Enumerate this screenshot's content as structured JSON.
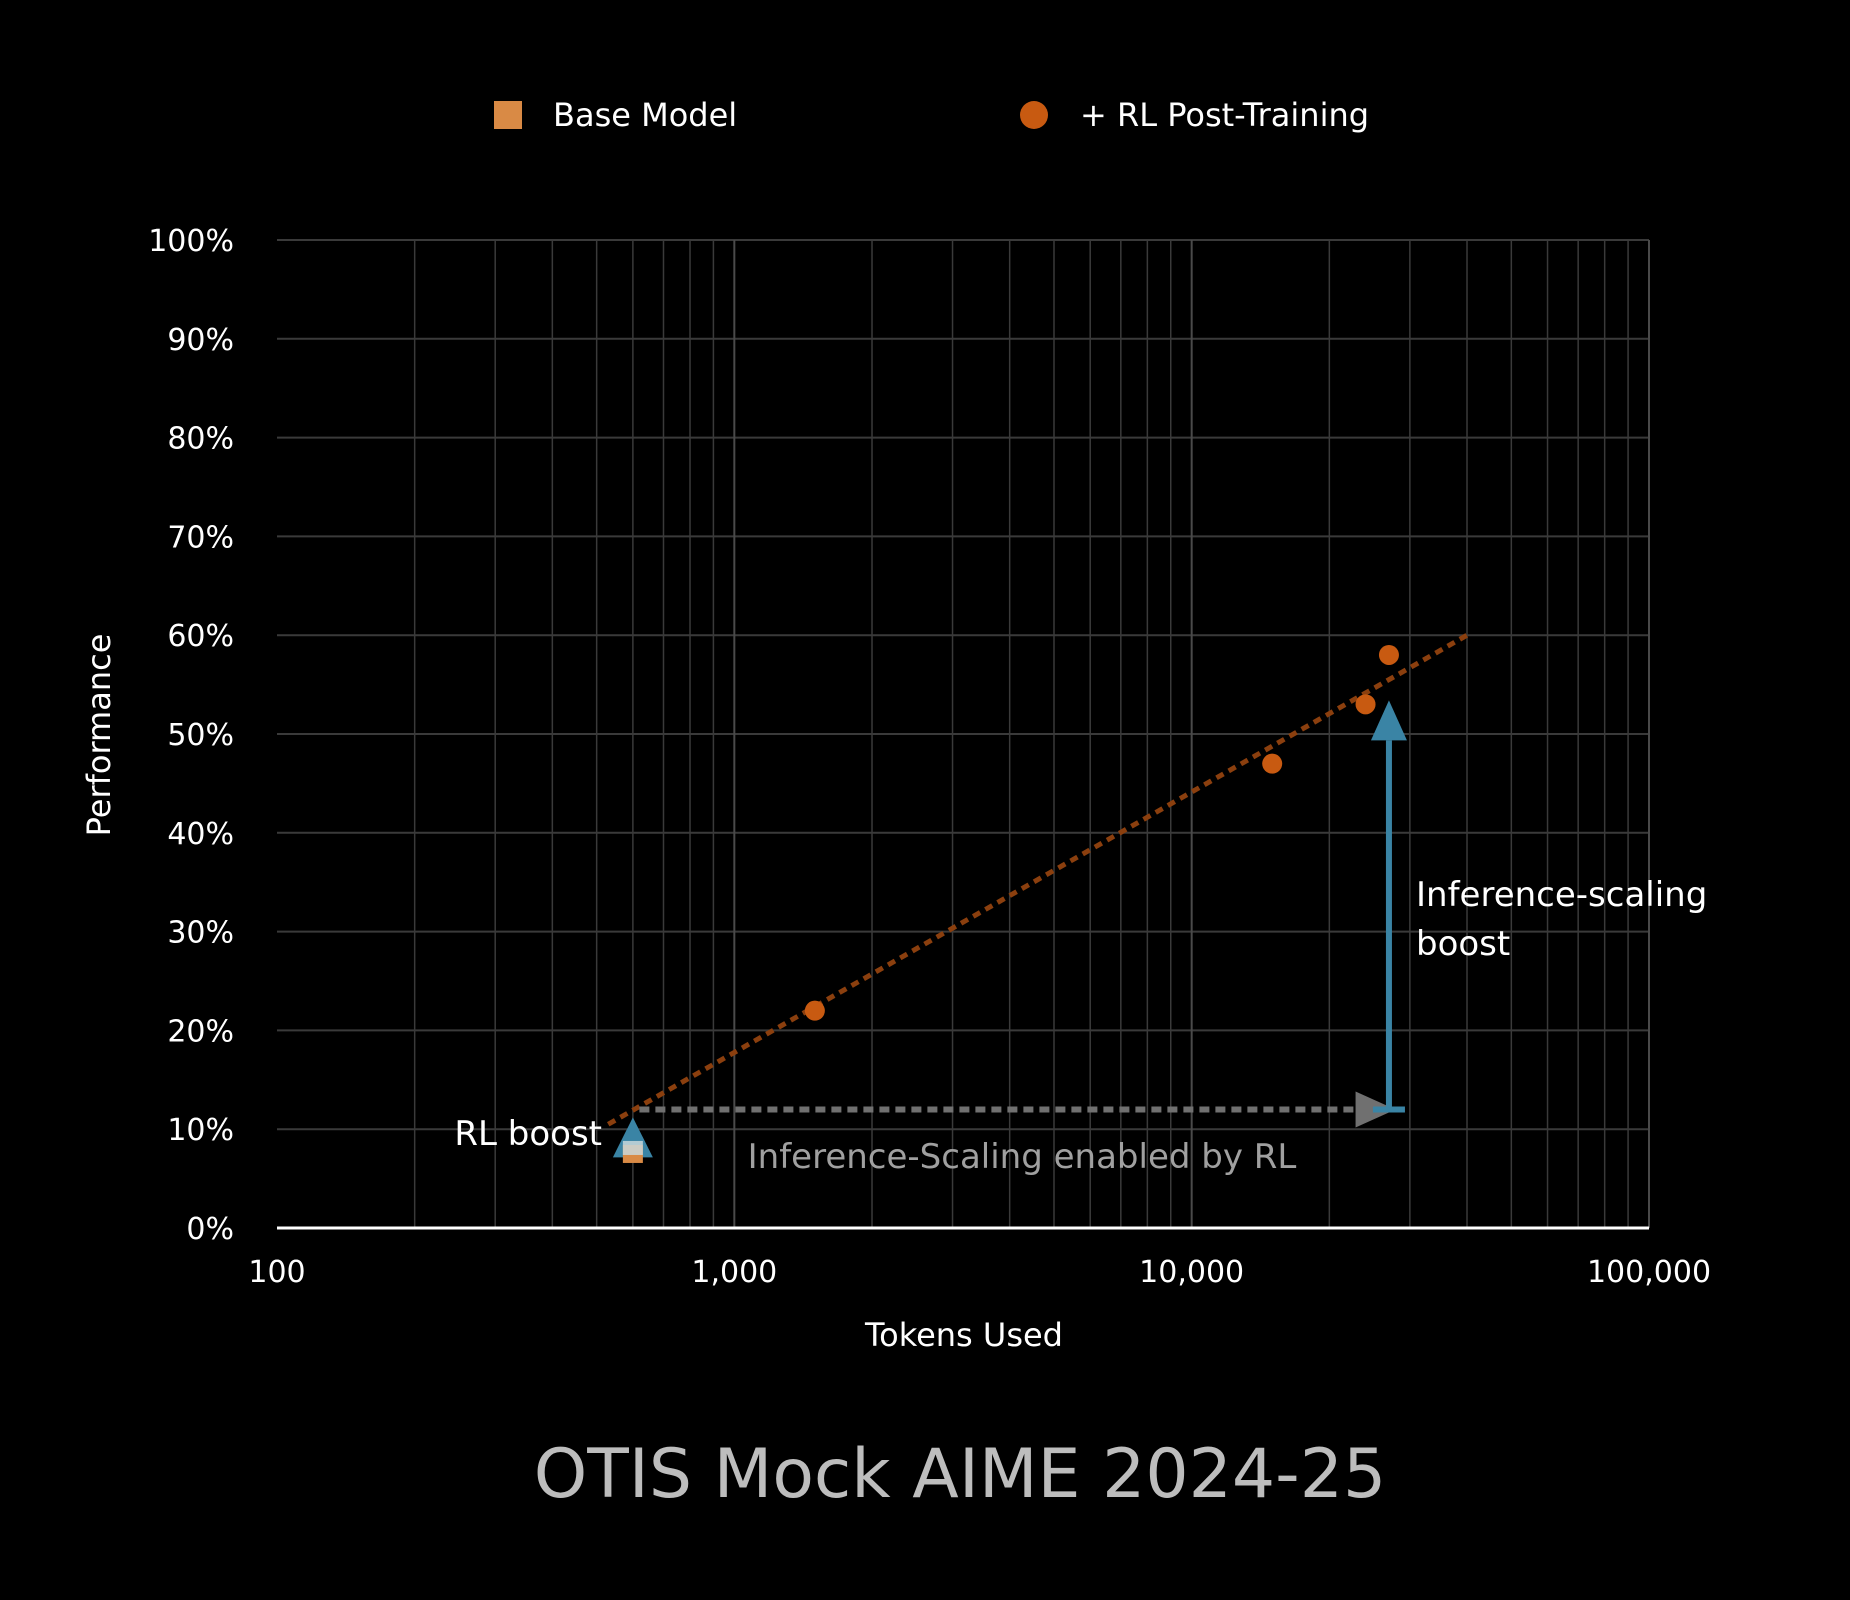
{
  "chart_data": {
    "type": "scatter",
    "title": "OTIS Mock AIME 2024-25",
    "xlabel": "Tokens Used",
    "ylabel": "Performance",
    "x_scale": "log",
    "xlim": [
      100,
      100000
    ],
    "ylim": [
      0,
      100
    ],
    "x_ticks": [
      100,
      1000,
      10000,
      100000
    ],
    "x_tick_labels": [
      "100",
      "1,000",
      "10,000",
      "100,000"
    ],
    "y_ticks": [
      0,
      10,
      20,
      30,
      40,
      50,
      60,
      70,
      80,
      90,
      100
    ],
    "y_tick_labels": [
      "0%",
      "10%",
      "20%",
      "30%",
      "40%",
      "50%",
      "60%",
      "70%",
      "80%",
      "90%",
      "100%"
    ],
    "grid": true,
    "legend_position": "top",
    "series": [
      {
        "name": "Base Model",
        "marker": "square",
        "color": "#D98A45",
        "points": [
          [
            600,
            8
          ]
        ]
      },
      {
        "name": "+ RL Post-Training",
        "marker": "circle",
        "color": "#C85A11",
        "points": [
          [
            1500,
            22
          ],
          [
            15000,
            47
          ],
          [
            24000,
            53
          ],
          [
            27000,
            58
          ]
        ]
      }
    ],
    "trendline": {
      "color": "#8B3F0E",
      "style": "dotted",
      "from": [
        530,
        10.5
      ],
      "to": [
        40000,
        60
      ]
    },
    "annotations": [
      {
        "text": "RL boost",
        "color": "#ffffff",
        "arrow": "up",
        "from": [
          600,
          8
        ],
        "to": [
          600,
          11
        ],
        "arrow_color": "#3A84A5"
      },
      {
        "text": "Inference-Scaling enabled by RL",
        "color": "#A0A0A0",
        "arrow": "right",
        "from": [
          620,
          12
        ],
        "to": [
          24000,
          12
        ],
        "arrow_color": "#707070"
      },
      {
        "text_lines": [
          "Inference-scaling",
          "boost"
        ],
        "color": "#ffffff",
        "arrow": "up",
        "from": [
          27000,
          12
        ],
        "to": [
          27000,
          53
        ],
        "arrow_color": "#3A84A5"
      }
    ],
    "colors": {
      "background": "#000000",
      "grid": "#3A3A3A",
      "axis": "#ffffff",
      "title": "#BDBDBD"
    }
  }
}
